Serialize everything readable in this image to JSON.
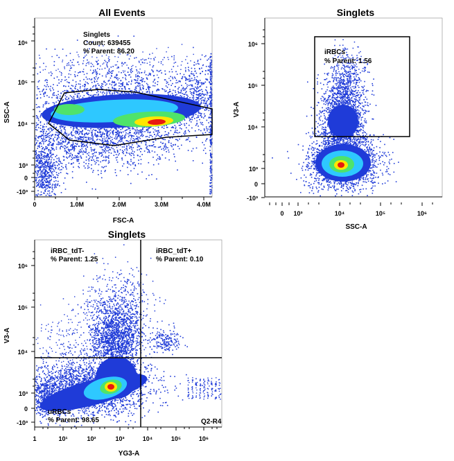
{
  "colors": {
    "low": "#1f3bd8",
    "mid": "#2ec8ff",
    "midhigh": "#4fe36a",
    "high": "#ffe600",
    "peak": "#e8190f",
    "gate": "#000000"
  },
  "panels": [
    {
      "title": "All Events",
      "xlabel": "FSC-A",
      "ylabel": "SSC-A",
      "x_ticks": [
        "0",
        "1.0M",
        "2.0M",
        "3.0M",
        "4.0M"
      ],
      "y_ticks": [
        "10³",
        "10⁴",
        "10⁵",
        "10⁶",
        "0",
        "-10³"
      ],
      "gates": [
        {
          "name": "Singlets",
          "count_label": "Count: 639455",
          "parent_label": "% Parent: 86.20"
        }
      ]
    },
    {
      "title": "Singlets",
      "xlabel": "SSC-A",
      "ylabel": "V3-A",
      "x_ticks": [
        "0",
        "10³",
        "10⁴",
        "10⁵",
        "10⁶"
      ],
      "y_ticks": [
        "10³",
        "10⁴",
        "10⁵",
        "10⁶",
        "0",
        "-10³"
      ],
      "gates": [
        {
          "name": "iRBCs",
          "parent_label": "% Parent: 1.56"
        }
      ]
    },
    {
      "title": "Singlets",
      "xlabel": "YG3-A",
      "ylabel": "V3-A",
      "x_ticks": [
        "1",
        "10¹",
        "10²",
        "10³",
        "10⁴",
        "10⁵",
        "10⁶"
      ],
      "y_ticks": [
        "10³",
        "10⁴",
        "10⁵",
        "10⁶",
        "0",
        "-10³"
      ],
      "gates": [
        {
          "name": "iRBC_tdT-",
          "parent_label": "% Parent: 1.25"
        },
        {
          "name": "iRBC_tdT+",
          "parent_label": "% Parent: 0.10"
        },
        {
          "name": "uRBCs",
          "parent_label": "% Parent: 98.65"
        },
        {
          "name": "Q2-R4"
        }
      ]
    }
  ],
  "chart_data": [
    {
      "type": "scatter",
      "title": "All Events",
      "xlabel": "FSC-A",
      "ylabel": "SSC-A",
      "x_scale": "linear",
      "y_scale": "biexponential",
      "xlim": [
        0,
        4200000
      ],
      "ylim": [
        -1000,
        4000000
      ],
      "density_peak": {
        "x": 2900000,
        "y": 9500
      },
      "gate": {
        "name": "Singlets",
        "count": 639455,
        "percent_parent": 86.2
      }
    },
    {
      "type": "scatter",
      "title": "Singlets",
      "xlabel": "SSC-A",
      "ylabel": "V3-A",
      "x_scale": "biexponential",
      "y_scale": "biexponential",
      "xlim": [
        -1000,
        4000000
      ],
      "ylim": [
        -1000,
        4000000
      ],
      "density_peak": {
        "x": 10000,
        "y": 1300
      },
      "gate": {
        "name": "iRBCs",
        "percent_parent": 1.56,
        "x_range": [
          2500,
          500000
        ],
        "y_range": [
          5500,
          1500000
        ]
      }
    },
    {
      "type": "scatter",
      "title": "Singlets",
      "xlabel": "YG3-A",
      "ylabel": "V3-A",
      "x_scale": "log",
      "y_scale": "biexponential",
      "xlim": [
        1,
        4000000
      ],
      "ylim": [
        -1000,
        4000000
      ],
      "density_peak": {
        "x": 500,
        "y": 1300
      },
      "quadrant_split": {
        "x": 5500,
        "y": 6500
      },
      "gates": [
        {
          "name": "iRBC_tdT-",
          "percent_parent": 1.25
        },
        {
          "name": "iRBC_tdT+",
          "percent_parent": 0.1
        },
        {
          "name": "uRBCs",
          "percent_parent": 98.65
        },
        {
          "name": "Q2-R4"
        }
      ]
    }
  ]
}
